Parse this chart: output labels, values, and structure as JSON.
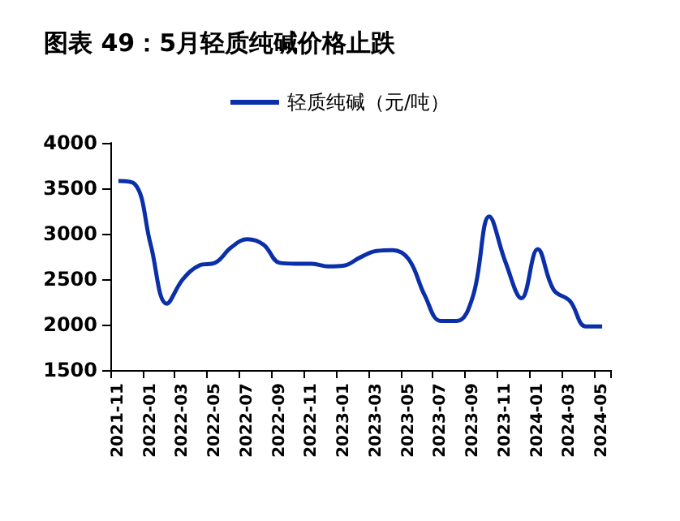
{
  "chart_data": {
    "type": "line",
    "title": "图表 49：5月轻质纯碱价格止跌",
    "categories": [
      "2021-11",
      null,
      "2022-01",
      null,
      "2022-03",
      null,
      "2022-05",
      null,
      "2022-07",
      null,
      "2022-09",
      null,
      "2022-11",
      null,
      "2023-01",
      null,
      "2023-03",
      null,
      "2023-05",
      null,
      "2023-07",
      null,
      "2023-09",
      null,
      "2023-11",
      null,
      "2024-01",
      null,
      "2024-03",
      null,
      "2024-05"
    ],
    "series": [
      {
        "name": "轻质纯碱（元/吨）",
        "color": "#0a2fa8",
        "values": [
          3580,
          3550,
          2880,
          2230,
          2500,
          2650,
          2680,
          2850,
          2940,
          2880,
          2680,
          2670,
          2670,
          2640,
          2650,
          2740,
          2810,
          2820,
          2720,
          2320,
          2040,
          2040,
          2320,
          3190,
          2690,
          2290,
          2830,
          2380,
          2260,
          1980,
          1980
        ]
      }
    ],
    "ylim": [
      1500,
      4000
    ],
    "yticks": [
      1500,
      2000,
      2500,
      3000,
      3500,
      4000
    ],
    "grid": false,
    "legend": "top",
    "marker": "none",
    "line_style": "solid"
  }
}
